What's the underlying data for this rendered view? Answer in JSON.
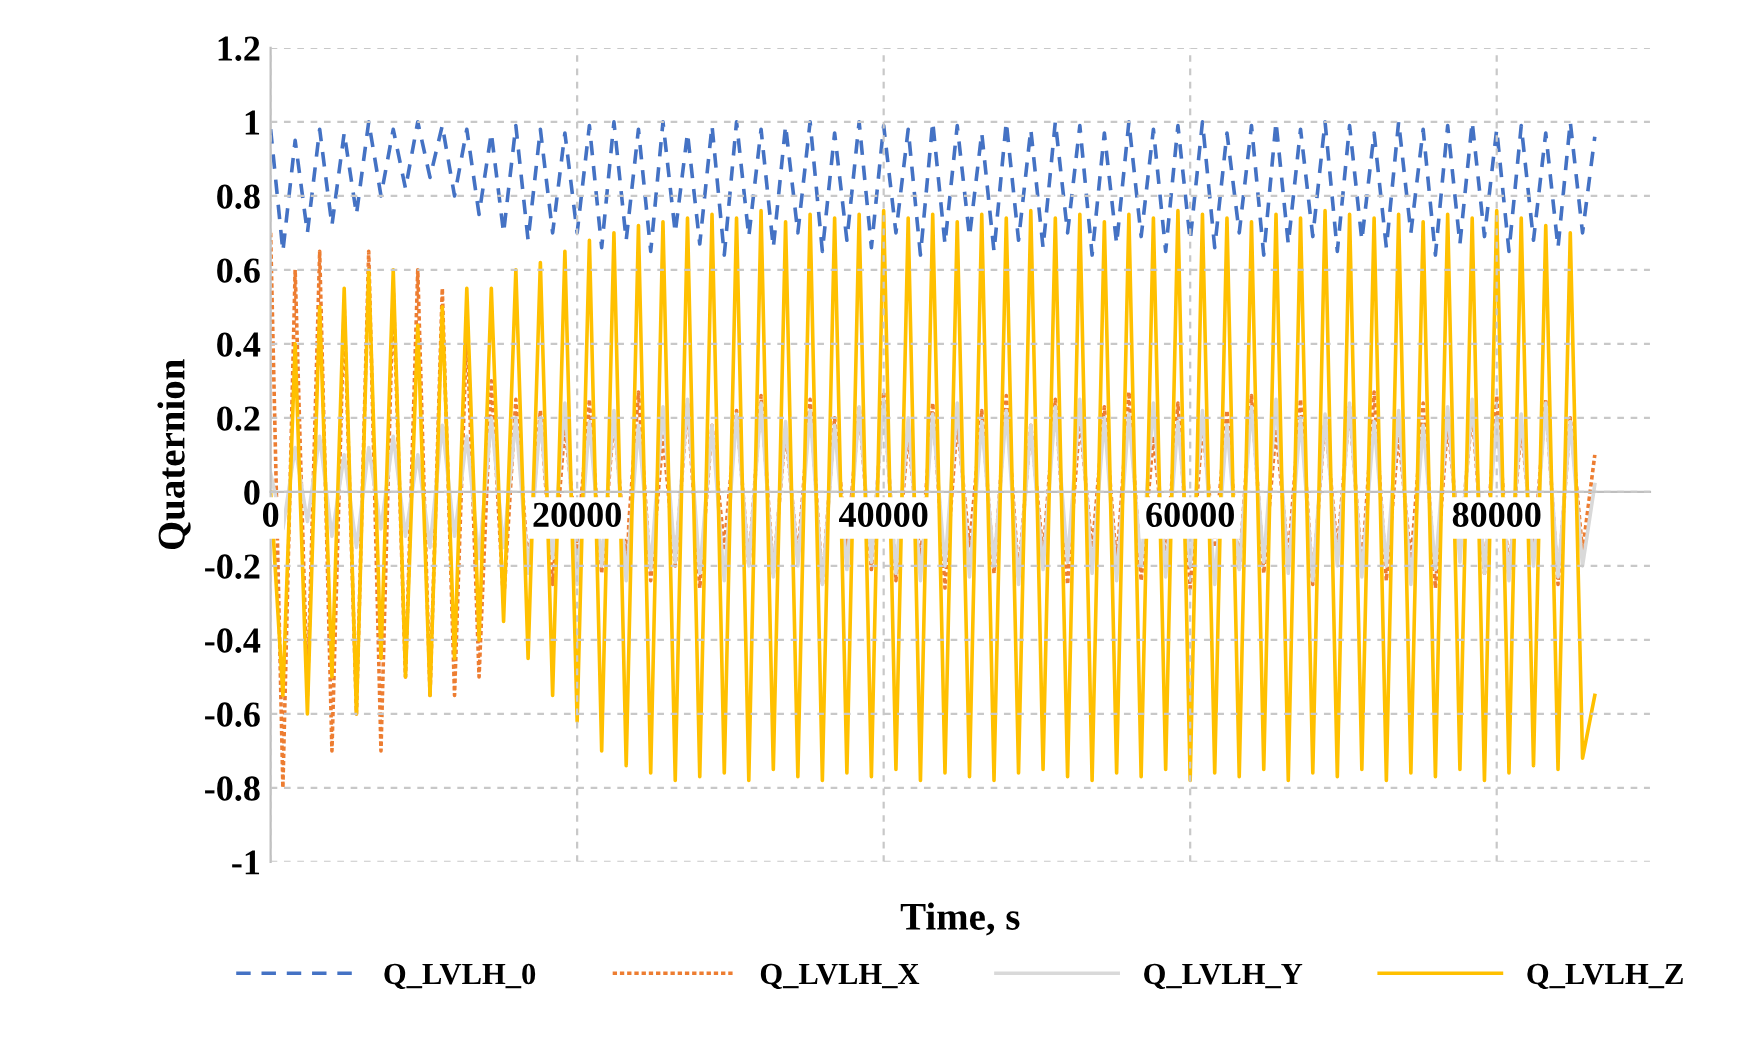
{
  "chart_data": {
    "type": "line",
    "xlabel": "Time, s",
    "ylabel": "Quaternion",
    "xlim": [
      0,
      90000
    ],
    "xticks": [
      0,
      20000,
      40000,
      60000,
      80000
    ],
    "ylim": [
      -1,
      1.2
    ],
    "yticks": [
      -1,
      -0.8,
      -0.6,
      -0.4,
      -0.2,
      0,
      0.2,
      0.4,
      0.6,
      0.8,
      1,
      1.2
    ],
    "grid": true,
    "legend": "bottom",
    "marker": "none",
    "x": [
      0,
      800,
      1600,
      2400,
      3200,
      4000,
      4800,
      5600,
      6400,
      7200,
      8000,
      8800,
      9600,
      10400,
      11200,
      12000,
      12800,
      13600,
      14400,
      15200,
      16000,
      16800,
      17600,
      18400,
      19200,
      20000,
      20800,
      21600,
      22400,
      23200,
      24000,
      24800,
      25600,
      26400,
      27200,
      28000,
      28800,
      29600,
      30400,
      31200,
      32000,
      32800,
      33600,
      34400,
      35200,
      36000,
      36800,
      37600,
      38400,
      39200,
      40000,
      40800,
      41600,
      42400,
      43200,
      44000,
      44800,
      45600,
      46400,
      47200,
      48000,
      48800,
      49600,
      50400,
      51200,
      52000,
      52800,
      53600,
      54400,
      55200,
      56000,
      56800,
      57600,
      58400,
      59200,
      60000,
      60800,
      61600,
      62400,
      63200,
      64000,
      64800,
      65600,
      66400,
      67200,
      68000,
      68800,
      69600,
      70400,
      71200,
      72000,
      72800,
      73600,
      74400,
      75200,
      76000,
      76800,
      77600,
      78400,
      79200,
      80000,
      80800,
      81600,
      82400,
      83200,
      84000,
      84800,
      85600,
      86400
    ],
    "series": [
      {
        "name": "Q_LVLH_0",
        "color": "#4472c4",
        "line_style": "dashed",
        "values": [
          0.98,
          0.65,
          0.95,
          0.7,
          0.98,
          0.72,
          0.97,
          0.75,
          1.0,
          0.8,
          0.98,
          0.82,
          1.0,
          0.85,
          0.99,
          0.8,
          0.98,
          0.75,
          0.97,
          0.7,
          0.99,
          0.68,
          0.98,
          0.7,
          0.97,
          0.7,
          0.99,
          0.66,
          1.0,
          0.68,
          0.98,
          0.65,
          1.0,
          0.7,
          0.97,
          0.67,
          0.99,
          0.64,
          1.0,
          0.69,
          0.98,
          0.66,
          0.99,
          0.7,
          1.0,
          0.65,
          0.97,
          0.68,
          1.0,
          0.66,
          0.99,
          0.7,
          0.98,
          0.64,
          1.0,
          0.67,
          0.99,
          0.69,
          0.97,
          0.65,
          1.0,
          0.68,
          0.98,
          0.66,
          1.0,
          0.7,
          0.99,
          0.64,
          0.97,
          0.67,
          1.0,
          0.69,
          0.98,
          0.65,
          0.99,
          0.68,
          1.0,
          0.66,
          0.97,
          0.7,
          0.99,
          0.64,
          1.0,
          0.67,
          0.98,
          0.69,
          1.0,
          0.65,
          0.99,
          0.68,
          0.97,
          0.66,
          1.0,
          0.7,
          0.98,
          0.64,
          0.99,
          0.67,
          1.0,
          0.69,
          0.98,
          0.65,
          0.99,
          0.68,
          0.97,
          0.66,
          1.0,
          0.7,
          0.96
        ]
      },
      {
        "name": "Q_LVLH_X",
        "color": "#ed7d31",
        "line_style": "dotted",
        "values": [
          0.7,
          -0.8,
          0.6,
          -0.55,
          0.65,
          -0.7,
          0.5,
          -0.6,
          0.65,
          -0.7,
          0.55,
          -0.5,
          0.6,
          -0.55,
          0.55,
          -0.55,
          0.45,
          -0.5,
          0.3,
          -0.3,
          0.25,
          -0.2,
          0.22,
          -0.25,
          0.18,
          -0.15,
          0.25,
          -0.22,
          0.2,
          -0.18,
          0.27,
          -0.24,
          0.15,
          -0.2,
          0.24,
          -0.26,
          0.18,
          -0.15,
          0.22,
          -0.2,
          0.26,
          -0.22,
          0.17,
          -0.18,
          0.25,
          -0.25,
          0.2,
          -0.16,
          0.23,
          -0.21,
          0.27,
          -0.24,
          0.16,
          -0.19,
          0.24,
          -0.26,
          0.19,
          -0.15,
          0.22,
          -0.22,
          0.26,
          -0.23,
          0.18,
          -0.17,
          0.25,
          -0.25,
          0.2,
          -0.16,
          0.23,
          -0.2,
          0.27,
          -0.24,
          0.15,
          -0.19,
          0.24,
          -0.26,
          0.18,
          -0.15,
          0.22,
          -0.21,
          0.26,
          -0.22,
          0.17,
          -0.18,
          0.25,
          -0.25,
          0.2,
          -0.16,
          0.23,
          -0.21,
          0.27,
          -0.24,
          0.16,
          -0.19,
          0.24,
          -0.26,
          0.19,
          -0.15,
          0.22,
          -0.22,
          0.26,
          -0.23,
          0.18,
          -0.17,
          0.25,
          -0.25,
          0.2,
          -0.16,
          0.1
        ]
      },
      {
        "name": "Q_LVLH_Y",
        "color": "#d9d9d9",
        "line_style": "solid",
        "values": [
          0.05,
          -0.1,
          0.12,
          -0.08,
          0.15,
          -0.12,
          0.1,
          -0.15,
          0.12,
          -0.1,
          0.15,
          -0.12,
          0.1,
          -0.15,
          0.18,
          -0.12,
          0.15,
          -0.18,
          0.2,
          -0.15,
          0.2,
          -0.22,
          0.2,
          -0.18,
          0.24,
          -0.25,
          0.19,
          -0.2,
          0.22,
          -0.24,
          0.18,
          -0.21,
          0.23,
          -0.19,
          0.25,
          -0.22,
          0.18,
          -0.24,
          0.21,
          -0.2,
          0.24,
          -0.23,
          0.19,
          -0.2,
          0.22,
          -0.25,
          0.18,
          -0.21,
          0.23,
          -0.19,
          0.25,
          -0.22,
          0.2,
          -0.24,
          0.21,
          -0.2,
          0.24,
          -0.23,
          0.19,
          -0.2,
          0.22,
          -0.25,
          0.18,
          -0.21,
          0.23,
          -0.19,
          0.25,
          -0.22,
          0.2,
          -0.24,
          0.21,
          -0.2,
          0.24,
          -0.23,
          0.19,
          -0.2,
          0.22,
          -0.25,
          0.18,
          -0.21,
          0.23,
          -0.19,
          0.25,
          -0.22,
          0.2,
          -0.24,
          0.21,
          -0.2,
          0.24,
          -0.23,
          0.19,
          -0.2,
          0.22,
          -0.25,
          0.18,
          -0.21,
          0.23,
          -0.19,
          0.25,
          -0.22,
          0.2,
          -0.24,
          0.21,
          -0.2,
          0.24,
          -0.23,
          0.19,
          -0.2,
          0.02
        ]
      },
      {
        "name": "Q_LVLH_Z",
        "color": "#ffc000",
        "line_style": "solid",
        "values": [
          0,
          -0.55,
          0.4,
          -0.6,
          0.5,
          -0.5,
          0.55,
          -0.6,
          0.6,
          -0.45,
          0.6,
          -0.5,
          0.45,
          -0.55,
          0.5,
          -0.45,
          0.55,
          -0.4,
          0.55,
          -0.35,
          0.6,
          -0.45,
          0.62,
          -0.55,
          0.65,
          -0.62,
          0.68,
          -0.7,
          0.7,
          -0.74,
          0.72,
          -0.76,
          0.73,
          -0.78,
          0.74,
          -0.77,
          0.75,
          -0.76,
          0.74,
          -0.78,
          0.76,
          -0.75,
          0.73,
          -0.77,
          0.75,
          -0.78,
          0.74,
          -0.76,
          0.75,
          -0.77,
          0.76,
          -0.75,
          0.74,
          -0.78,
          0.75,
          -0.76,
          0.73,
          -0.77,
          0.75,
          -0.78,
          0.74,
          -0.76,
          0.76,
          -0.75,
          0.74,
          -0.77,
          0.75,
          -0.78,
          0.73,
          -0.76,
          0.75,
          -0.77,
          0.74,
          -0.75,
          0.76,
          -0.78,
          0.75,
          -0.76,
          0.74,
          -0.77,
          0.73,
          -0.75,
          0.75,
          -0.78,
          0.74,
          -0.76,
          0.76,
          -0.77,
          0.75,
          -0.75,
          0.74,
          -0.78,
          0.75,
          -0.76,
          0.73,
          -0.77,
          0.75,
          -0.75,
          0.74,
          -0.78,
          0.76,
          -0.76,
          0.74,
          -0.74,
          0.72,
          -0.75,
          0.7,
          -0.72,
          -0.55
        ]
      }
    ]
  }
}
